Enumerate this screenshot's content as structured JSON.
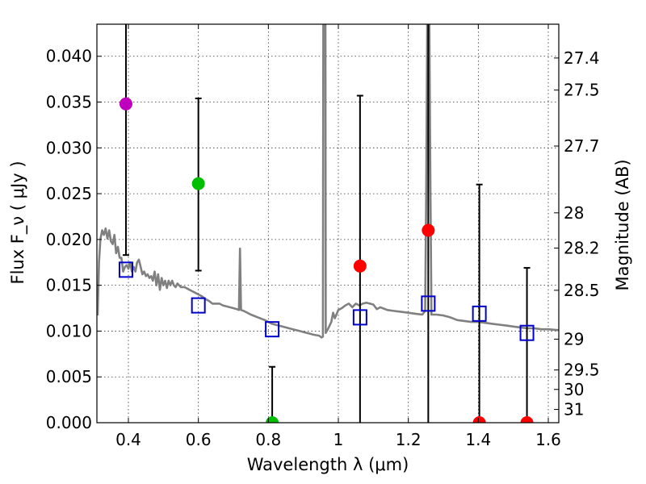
{
  "chart_data": {
    "type": "scatter",
    "title": "",
    "xlabel": "Wavelength  λ (μm)",
    "ylabel": "Flux  F_ν  ( μJy )",
    "ylabel_right": "Magnitude (AB)",
    "xlim": [
      0.31,
      1.63
    ],
    "ylim": [
      0.0,
      0.0435
    ],
    "grid": true,
    "x_ticks": [
      0.4,
      0.6,
      0.8,
      1.0,
      1.2,
      1.4,
      1.6
    ],
    "x_tick_labels": [
      "0.4",
      "0.6",
      "0.8",
      "1",
      "1.2",
      "1.4",
      "1.6"
    ],
    "y_ticks": [
      0.0,
      0.005,
      0.01,
      0.015,
      0.02,
      0.025,
      0.03,
      0.035,
      0.04
    ],
    "y_tick_labels": [
      "0.000",
      "0.005",
      "0.010",
      "0.015",
      "0.020",
      "0.025",
      "0.030",
      "0.035",
      "0.040"
    ],
    "mag_ticks": [
      {
        "mag": 27.4,
        "label": "27.4"
      },
      {
        "mag": 27.5,
        "label": "27.5"
      },
      {
        "mag": 27.7,
        "label": "27.7"
      },
      {
        "mag": 28.0,
        "label": "28"
      },
      {
        "mag": 28.2,
        "label": "28.2"
      },
      {
        "mag": 28.5,
        "label": "28.5"
      },
      {
        "mag": 29.0,
        "label": "29"
      },
      {
        "mag": 29.5,
        "label": "29.5"
      },
      {
        "mag": 30.0,
        "label": "30"
      },
      {
        "mag": 31.0,
        "label": "31"
      }
    ],
    "observed": [
      {
        "x": 0.393,
        "y": 0.0348,
        "err_low": 0.0183,
        "err_high": 0.0435,
        "color": "#bf00bf"
      },
      {
        "x": 0.6,
        "y": 0.0261,
        "err_low": 0.0166,
        "err_high": 0.0354,
        "color": "#00bf00"
      },
      {
        "x": 0.811,
        "y": 0.0,
        "err_low": 0.0,
        "err_high": 0.0061,
        "color": "#00bf00"
      },
      {
        "x": 1.062,
        "y": 0.0171,
        "err_low": 0.0,
        "err_high": 0.0357,
        "color": "#ff0000"
      },
      {
        "x": 1.257,
        "y": 0.021,
        "err_low": 0.0,
        "err_high": 0.0435,
        "color": "#ff0000"
      },
      {
        "x": 1.403,
        "y": 0.0,
        "err_low": 0.0,
        "err_high": 0.026,
        "color": "#ff0000"
      },
      {
        "x": 1.539,
        "y": 0.0,
        "err_low": 0.0,
        "err_high": 0.0169,
        "color": "#ff0000"
      }
    ],
    "model_photometry": [
      {
        "x": 0.393,
        "y": 0.0167
      },
      {
        "x": 0.6,
        "y": 0.0128
      },
      {
        "x": 0.811,
        "y": 0.0102
      },
      {
        "x": 1.062,
        "y": 0.0115
      },
      {
        "x": 1.257,
        "y": 0.013
      },
      {
        "x": 1.403,
        "y": 0.0119
      },
      {
        "x": 1.539,
        "y": 0.0098
      }
    ],
    "model_spectrum": {
      "color": "#808080",
      "points": [
        [
          0.312,
          0.0117
        ],
        [
          0.316,
          0.0175
        ],
        [
          0.32,
          0.02
        ],
        [
          0.325,
          0.021
        ],
        [
          0.33,
          0.0205
        ],
        [
          0.335,
          0.0212
        ],
        [
          0.34,
          0.0201
        ],
        [
          0.345,
          0.021
        ],
        [
          0.35,
          0.0198
        ],
        [
          0.355,
          0.0195
        ],
        [
          0.36,
          0.0205
        ],
        [
          0.365,
          0.0185
        ],
        [
          0.37,
          0.0192
        ],
        [
          0.375,
          0.018
        ],
        [
          0.38,
          0.018
        ],
        [
          0.385,
          0.0165
        ],
        [
          0.39,
          0.017
        ],
        [
          0.395,
          0.0172
        ],
        [
          0.4,
          0.0168
        ],
        [
          0.405,
          0.0175
        ],
        [
          0.41,
          0.0165
        ],
        [
          0.415,
          0.017
        ],
        [
          0.42,
          0.0165
        ],
        [
          0.425,
          0.0175
        ],
        [
          0.43,
          0.0178
        ],
        [
          0.435,
          0.017
        ],
        [
          0.44,
          0.0162
        ],
        [
          0.445,
          0.0165
        ],
        [
          0.45,
          0.016
        ],
        [
          0.455,
          0.0162
        ],
        [
          0.46,
          0.0158
        ],
        [
          0.465,
          0.016
        ],
        [
          0.47,
          0.0155
        ],
        [
          0.475,
          0.0165
        ],
        [
          0.48,
          0.015
        ],
        [
          0.485,
          0.0162
        ],
        [
          0.49,
          0.0145
        ],
        [
          0.495,
          0.0158
        ],
        [
          0.5,
          0.015
        ],
        [
          0.505,
          0.0155
        ],
        [
          0.51,
          0.0147
        ],
        [
          0.515,
          0.0155
        ],
        [
          0.52,
          0.015
        ],
        [
          0.525,
          0.0155
        ],
        [
          0.53,
          0.015
        ],
        [
          0.535,
          0.0148
        ],
        [
          0.54,
          0.0152
        ],
        [
          0.545,
          0.015
        ],
        [
          0.55,
          0.0148
        ],
        [
          0.56,
          0.0148
        ],
        [
          0.57,
          0.0146
        ],
        [
          0.58,
          0.0144
        ],
        [
          0.59,
          0.0142
        ],
        [
          0.6,
          0.014
        ],
        [
          0.61,
          0.0138
        ],
        [
          0.62,
          0.0135
        ],
        [
          0.63,
          0.0133
        ],
        [
          0.64,
          0.013
        ],
        [
          0.65,
          0.013
        ],
        [
          0.66,
          0.013
        ],
        [
          0.67,
          0.0128
        ],
        [
          0.68,
          0.0127
        ],
        [
          0.69,
          0.0126
        ],
        [
          0.7,
          0.0125
        ],
        [
          0.71,
          0.0124
        ],
        [
          0.716,
          0.0123
        ],
        [
          0.719,
          0.019
        ],
        [
          0.722,
          0.0123
        ],
        [
          0.73,
          0.0122
        ],
        [
          0.75,
          0.0118
        ],
        [
          0.77,
          0.0115
        ],
        [
          0.79,
          0.0112
        ],
        [
          0.81,
          0.0108
        ],
        [
          0.83,
          0.0106
        ],
        [
          0.85,
          0.0104
        ],
        [
          0.87,
          0.0102
        ],
        [
          0.89,
          0.01
        ],
        [
          0.91,
          0.0098
        ],
        [
          0.93,
          0.0096
        ],
        [
          0.945,
          0.0095
        ],
        [
          0.952,
          0.0093
        ],
        [
          0.956,
          0.0094
        ],
        [
          0.957,
          0.0435
        ],
        [
          0.963,
          0.0435
        ],
        [
          0.964,
          0.0098
        ],
        [
          0.97,
          0.0102
        ],
        [
          0.98,
          0.011
        ],
        [
          0.985,
          0.012
        ],
        [
          0.99,
          0.0114
        ],
        [
          1.0,
          0.0123
        ],
        [
          1.01,
          0.0125
        ],
        [
          1.02,
          0.0128
        ],
        [
          1.03,
          0.013
        ],
        [
          1.04,
          0.0126
        ],
        [
          1.05,
          0.013
        ],
        [
          1.06,
          0.0128
        ],
        [
          1.07,
          0.013
        ],
        [
          1.08,
          0.0131
        ],
        [
          1.09,
          0.013
        ],
        [
          1.1,
          0.0129
        ],
        [
          1.11,
          0.0124
        ],
        [
          1.12,
          0.0126
        ],
        [
          1.14,
          0.0123
        ],
        [
          1.16,
          0.0122
        ],
        [
          1.18,
          0.0121
        ],
        [
          1.2,
          0.012
        ],
        [
          1.22,
          0.0119
        ],
        [
          1.24,
          0.0118
        ],
        [
          1.248,
          0.0122
        ],
        [
          1.251,
          0.025
        ],
        [
          1.254,
          0.0435
        ],
        [
          1.26,
          0.0435
        ],
        [
          1.263,
          0.026
        ],
        [
          1.266,
          0.0118
        ],
        [
          1.28,
          0.0118
        ],
        [
          1.3,
          0.0117
        ],
        [
          1.32,
          0.0115
        ],
        [
          1.34,
          0.0112
        ],
        [
          1.36,
          0.0111
        ],
        [
          1.38,
          0.011
        ],
        [
          1.4,
          0.011
        ],
        [
          1.42,
          0.0109
        ],
        [
          1.44,
          0.0108
        ],
        [
          1.46,
          0.0107
        ],
        [
          1.48,
          0.0106
        ],
        [
          1.5,
          0.0105
        ],
        [
          1.52,
          0.0104
        ],
        [
          1.54,
          0.0103
        ],
        [
          1.56,
          0.0103
        ],
        [
          1.58,
          0.0102
        ],
        [
          1.6,
          0.0102
        ],
        [
          1.63,
          0.0101
        ]
      ]
    }
  }
}
